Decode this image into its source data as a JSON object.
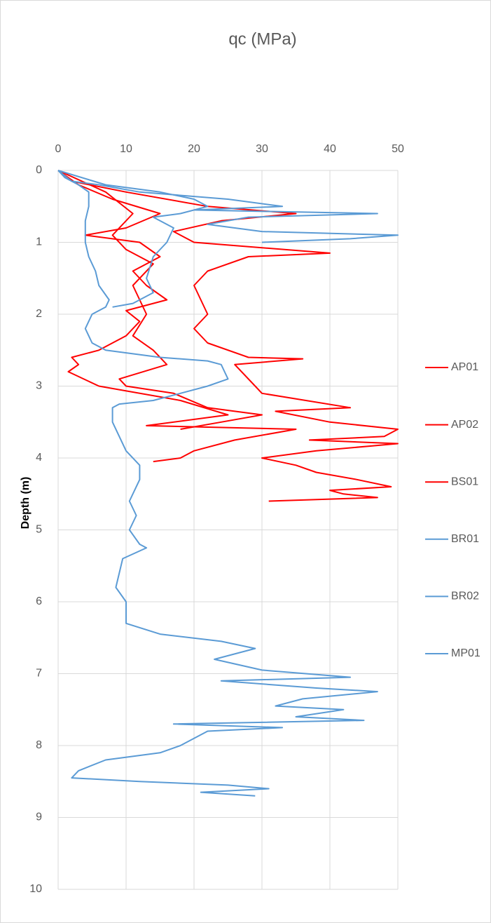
{
  "chart_data": {
    "type": "line",
    "title": "qc (MPa)",
    "y_label": "Depth (m)",
    "xlim": [
      0,
      50
    ],
    "xticks": [
      0,
      10,
      20,
      30,
      40,
      50
    ],
    "x_axis_position": "top",
    "ylim": [
      0,
      10
    ],
    "yticks": [
      0,
      1,
      2,
      3,
      4,
      5,
      6,
      7,
      8,
      9,
      10
    ],
    "y_inverted": true,
    "grid": true,
    "legend": "right",
    "series": [
      {
        "name": "AP01",
        "color": "#ff0000",
        "x": [
          0,
          2,
          10,
          22,
          35,
          24,
          17,
          20,
          40,
          28,
          22,
          20,
          21,
          22,
          20,
          22,
          28,
          36,
          26,
          29,
          30,
          43,
          32,
          40,
          50,
          48,
          37,
          50,
          38,
          30,
          35,
          38,
          44,
          49,
          40,
          42,
          47,
          31
        ],
        "y": [
          0,
          0.15,
          0.3,
          0.5,
          0.6,
          0.7,
          0.85,
          1.0,
          1.15,
          1.2,
          1.4,
          1.6,
          1.8,
          2.0,
          2.2,
          2.4,
          2.6,
          2.62,
          2.7,
          3.0,
          3.1,
          3.3,
          3.35,
          3.5,
          3.6,
          3.7,
          3.75,
          3.8,
          3.9,
          4.0,
          4.1,
          4.2,
          4.3,
          4.4,
          4.45,
          4.5,
          4.55,
          4.6
        ]
      },
      {
        "name": "AP02",
        "color": "#ff0000",
        "x": [
          0,
          3,
          8,
          15,
          10,
          4,
          12,
          15,
          11,
          13,
          16,
          10,
          12,
          10,
          6,
          2,
          3,
          1.5,
          6,
          18,
          25,
          13,
          35,
          26,
          20,
          18,
          14
        ],
        "y": [
          0,
          0.2,
          0.4,
          0.6,
          0.8,
          0.9,
          1.0,
          1.2,
          1.4,
          1.6,
          1.8,
          1.95,
          2.1,
          2.3,
          2.5,
          2.6,
          2.7,
          2.8,
          3.0,
          3.2,
          3.4,
          3.55,
          3.6,
          3.75,
          3.9,
          4.0,
          4.05
        ]
      },
      {
        "name": "BS01",
        "color": "#ff0000",
        "x": [
          0,
          7,
          11,
          8,
          10,
          14,
          11,
          13,
          11,
          14,
          16,
          9,
          10,
          17,
          22,
          30,
          24,
          18
        ],
        "y": [
          0,
          0.3,
          0.6,
          0.9,
          1.1,
          1.3,
          1.6,
          2.0,
          2.3,
          2.5,
          2.7,
          2.9,
          3.0,
          3.1,
          3.3,
          3.4,
          3.5,
          3.6
        ]
      },
      {
        "name": "BR01",
        "color": "#5b9bd5",
        "x": [
          0,
          2,
          6,
          12,
          25,
          33,
          20,
          47,
          28,
          22,
          30,
          50,
          43,
          30
        ],
        "y": [
          0,
          0.15,
          0.2,
          0.3,
          0.4,
          0.5,
          0.55,
          0.6,
          0.65,
          0.75,
          0.85,
          0.9,
          0.95,
          1.0
        ]
      },
      {
        "name": "BR02",
        "color": "#5b9bd5",
        "x": [
          0,
          7,
          15,
          20,
          22,
          18,
          14,
          17,
          16,
          14,
          13,
          14,
          11,
          8
        ],
        "y": [
          0,
          0.2,
          0.3,
          0.4,
          0.5,
          0.6,
          0.65,
          0.8,
          1.0,
          1.2,
          1.5,
          1.7,
          1.85,
          1.9
        ]
      },
      {
        "name": "MP01",
        "color": "#5b9bd5",
        "x": [
          0,
          1,
          3,
          4.5,
          4.5,
          4,
          4,
          4.5,
          5.5,
          6,
          7.5,
          7,
          5,
          4,
          5,
          7,
          15,
          22,
          24,
          24.5,
          25,
          22,
          18,
          14,
          9,
          8,
          8,
          9,
          10,
          12,
          12,
          10.5,
          11.5,
          10.5,
          12,
          13,
          9.5,
          9,
          8.5,
          10,
          10,
          15,
          24,
          29,
          23,
          30,
          43,
          24,
          38,
          47,
          36,
          32,
          42,
          35,
          45,
          17,
          33,
          22,
          20,
          18,
          15,
          7,
          3,
          2,
          12,
          25,
          31,
          21,
          29
        ],
        "y": [
          0,
          0.1,
          0.2,
          0.3,
          0.5,
          0.7,
          1.0,
          1.2,
          1.4,
          1.6,
          1.8,
          1.9,
          2.0,
          2.2,
          2.4,
          2.5,
          2.6,
          2.65,
          2.7,
          2.8,
          2.9,
          3.0,
          3.1,
          3.2,
          3.25,
          3.3,
          3.5,
          3.7,
          3.9,
          4.1,
          4.3,
          4.6,
          4.8,
          5.0,
          5.2,
          5.25,
          5.4,
          5.6,
          5.8,
          6.0,
          6.3,
          6.45,
          6.55,
          6.65,
          6.8,
          6.95,
          7.05,
          7.1,
          7.2,
          7.25,
          7.35,
          7.45,
          7.5,
          7.6,
          7.65,
          7.7,
          7.75,
          7.8,
          7.9,
          8.0,
          8.1,
          8.2,
          8.35,
          8.45,
          8.5,
          8.55,
          8.6,
          8.65,
          8.7
        ]
      }
    ]
  }
}
